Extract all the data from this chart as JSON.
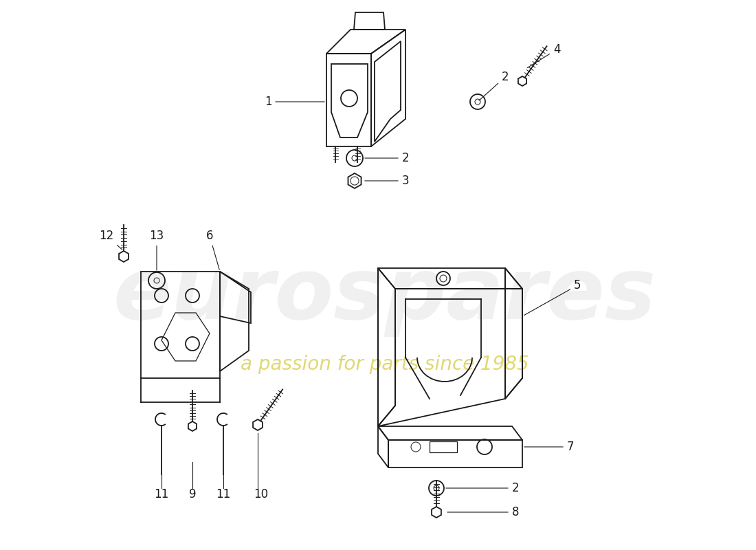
{
  "bg_color": "#ffffff",
  "line_color": "#1a1a1a",
  "lw": 1.3,
  "label_fs": 12,
  "watermark1": "eurospares",
  "watermark2": "a passion for parts since 1985"
}
